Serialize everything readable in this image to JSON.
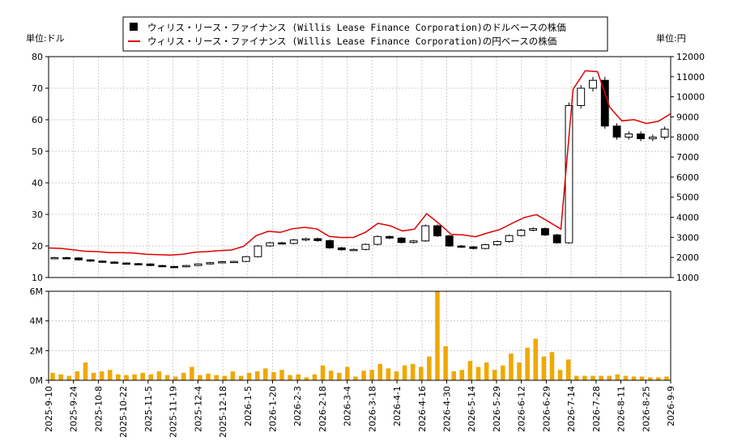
{
  "legend": {
    "usd_label": "ウィリス・リース・ファイナンス (Willis Lease Finance Corporation)のドルベースの株価",
    "jpy_label": "ウィリス・リース・ファイナンス (Willis Lease Finance Corporation)の円ベースの株価"
  },
  "units": {
    "left": "単位:ドル",
    "right": "単位:円"
  },
  "colors": {
    "candle": "#000000",
    "yen_line": "#dd0000",
    "volume": "#f0a800",
    "grid": "#cccccc"
  },
  "chart_data": [
    {
      "type": "line",
      "title": "",
      "ylim_left": [
        10,
        80
      ],
      "ylim_right": [
        1000,
        12000
      ],
      "y_ticks_left": [
        "10",
        "20",
        "30",
        "40",
        "50",
        "60",
        "70",
        "80"
      ],
      "y_ticks_right": [
        "1000",
        "2000",
        "3000",
        "4000",
        "5000",
        "6000",
        "7000",
        "8000",
        "9000",
        "10000",
        "11000",
        "12000"
      ],
      "grid": true,
      "x_tick_labels": [
        "2025-9-10",
        "2025-9-24",
        "2025-10-8",
        "2025-10-22",
        "2025-11-5",
        "2025-11-19",
        "2025-12-4",
        "2025-12-18",
        "2026-1-5",
        "2026-1-20",
        "2026-2-3",
        "2026-2-18",
        "2026-3-4",
        "2026-3-18",
        "2026-4-1",
        "2026-4-16",
        "2026-4-30",
        "2026-5-14",
        "2026-5-29",
        "2026-6-12",
        "2026-6-29",
        "2026-7-14",
        "2026-7-28",
        "2026-8-11",
        "2026-8-25",
        "2026-9-9"
      ],
      "series": [
        {
          "name": "ウィリス・リース・ファイナンス (Willis Lease Finance Corporation)のドルベースの株価",
          "kind": "candlestick",
          "values": [
            16.3,
            16.2,
            15.6,
            15.2,
            14.9,
            14.6,
            14.4,
            14.3,
            13.8,
            13.5,
            13.4,
            13.8,
            14.3,
            14.7,
            15.0,
            15.1,
            16.6,
            20.0,
            21.0,
            20.8,
            21.9,
            22.3,
            21.7,
            19.4,
            18.8,
            18.9,
            20.5,
            23.0,
            22.5,
            21.1,
            21.6,
            26.4,
            23.2,
            20.0,
            19.7,
            19.2,
            20.4,
            21.4,
            23.3,
            25.0,
            25.5,
            23.5,
            21.0,
            64.5,
            70.0,
            72.5,
            58.0,
            54.5,
            55.5,
            54.0,
            54.5,
            57.0
          ]
        },
        {
          "name": "ウィリス・リース・ファイナンス (Willis Lease Finance Corporation)の円ベースの株価",
          "kind": "line",
          "axis": "right",
          "values": [
            2470,
            2450,
            2380,
            2310,
            2290,
            2240,
            2240,
            2220,
            2160,
            2140,
            2120,
            2160,
            2260,
            2290,
            2340,
            2370,
            2560,
            3080,
            3300,
            3250,
            3430,
            3500,
            3420,
            3050,
            2990,
            3000,
            3260,
            3700,
            3580,
            3320,
            3410,
            4180,
            3690,
            3150,
            3120,
            3030,
            3220,
            3390,
            3700,
            3990,
            4130,
            3780,
            3410,
            10380,
            11300,
            11250,
            9480,
            8800,
            8860,
            8670,
            8780,
            9160
          ]
        }
      ]
    },
    {
      "type": "bar",
      "title": "",
      "ylim": [
        0,
        6000000
      ],
      "y_ticks": [
        "0M",
        "2M",
        "4M",
        "6M"
      ],
      "grid": true,
      "series": [
        {
          "name": "",
          "values": [
            500000,
            400000,
            300000,
            600000,
            1200000,
            500000,
            600000,
            700000,
            400000,
            350000,
            400000,
            500000,
            400000,
            600000,
            350000,
            250000,
            500000,
            900000,
            350000,
            450000,
            350000,
            300000,
            600000,
            300000,
            500000,
            600000,
            800000,
            550000,
            700000,
            350000,
            400000,
            200000,
            400000,
            1000000,
            650000,
            500000,
            900000,
            250000,
            650000,
            700000,
            1100000,
            800000,
            600000,
            1000000,
            1100000,
            900000,
            1600000,
            6000000,
            2300000,
            600000,
            700000,
            1300000,
            900000,
            1200000,
            700000,
            1000000,
            1800000,
            1200000,
            2200000,
            2800000,
            1600000,
            1900000,
            700000,
            1400000,
            300000,
            300000,
            300000,
            300000,
            300000,
            400000,
            300000,
            250000,
            250000,
            200000,
            200000,
            250000
          ]
        }
      ]
    }
  ]
}
